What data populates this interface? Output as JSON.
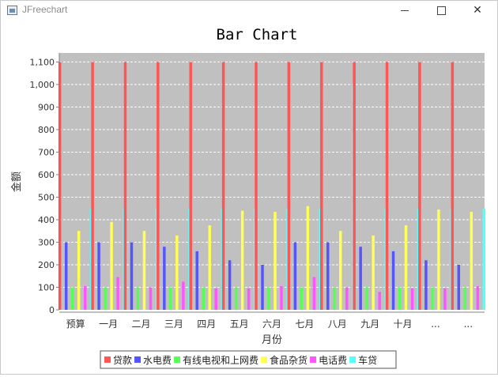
{
  "window": {
    "title": "JFreechart",
    "icon": "java-app-icon",
    "buttons": [
      "minimize",
      "maximize",
      "close"
    ]
  },
  "chart_data": {
    "type": "bar",
    "title": "Bar Chart",
    "xlabel": "月份",
    "ylabel": "金额",
    "ylim": [
      0,
      1140
    ],
    "yticks": [
      0,
      100,
      200,
      300,
      400,
      500,
      600,
      700,
      800,
      900,
      1000,
      1100
    ],
    "ytick_labels": [
      "0",
      "100",
      "200",
      "300",
      "400",
      "500",
      "600",
      "700",
      "800",
      "900",
      "1,000",
      "1,100"
    ],
    "grid": true,
    "legend_position": "bottom",
    "background": "#c0c0c0",
    "categories": [
      "预算",
      "一月",
      "二月",
      "三月",
      "四月",
      "五月",
      "六月",
      "七月",
      "八月",
      "九月",
      "十月",
      "...",
      "..."
    ],
    "series": [
      {
        "name": "贷款",
        "color": "#ff5555",
        "values": [
          1100,
          1100,
          1100,
          1100,
          1100,
          1100,
          1100,
          1100,
          1100,
          1100,
          1100,
          1100,
          1100
        ]
      },
      {
        "name": "水电费",
        "color": "#5555ff",
        "values": [
          300,
          300,
          300,
          280,
          260,
          220,
          200,
          300,
          300,
          280,
          260,
          220,
          200
        ]
      },
      {
        "name": "有线电视和上网费",
        "color": "#55ff55",
        "values": [
          100,
          100,
          100,
          100,
          100,
          100,
          100,
          100,
          100,
          100,
          100,
          100,
          100
        ]
      },
      {
        "name": "食品杂货",
        "color": "#ffff55",
        "values": [
          350,
          390,
          350,
          330,
          375,
          440,
          435,
          460,
          350,
          330,
          375,
          445,
          435
        ]
      },
      {
        "name": "电话费",
        "color": "#ff55ff",
        "values": [
          105,
          145,
          100,
          125,
          95,
          95,
          105,
          145,
          100,
          80,
          95,
          95,
          105
        ]
      },
      {
        "name": "车贷",
        "color": "#55ffff",
        "values": [
          450,
          450,
          450,
          450,
          450,
          450,
          450,
          450,
          1000,
          450,
          450,
          450,
          450
        ]
      }
    ]
  }
}
